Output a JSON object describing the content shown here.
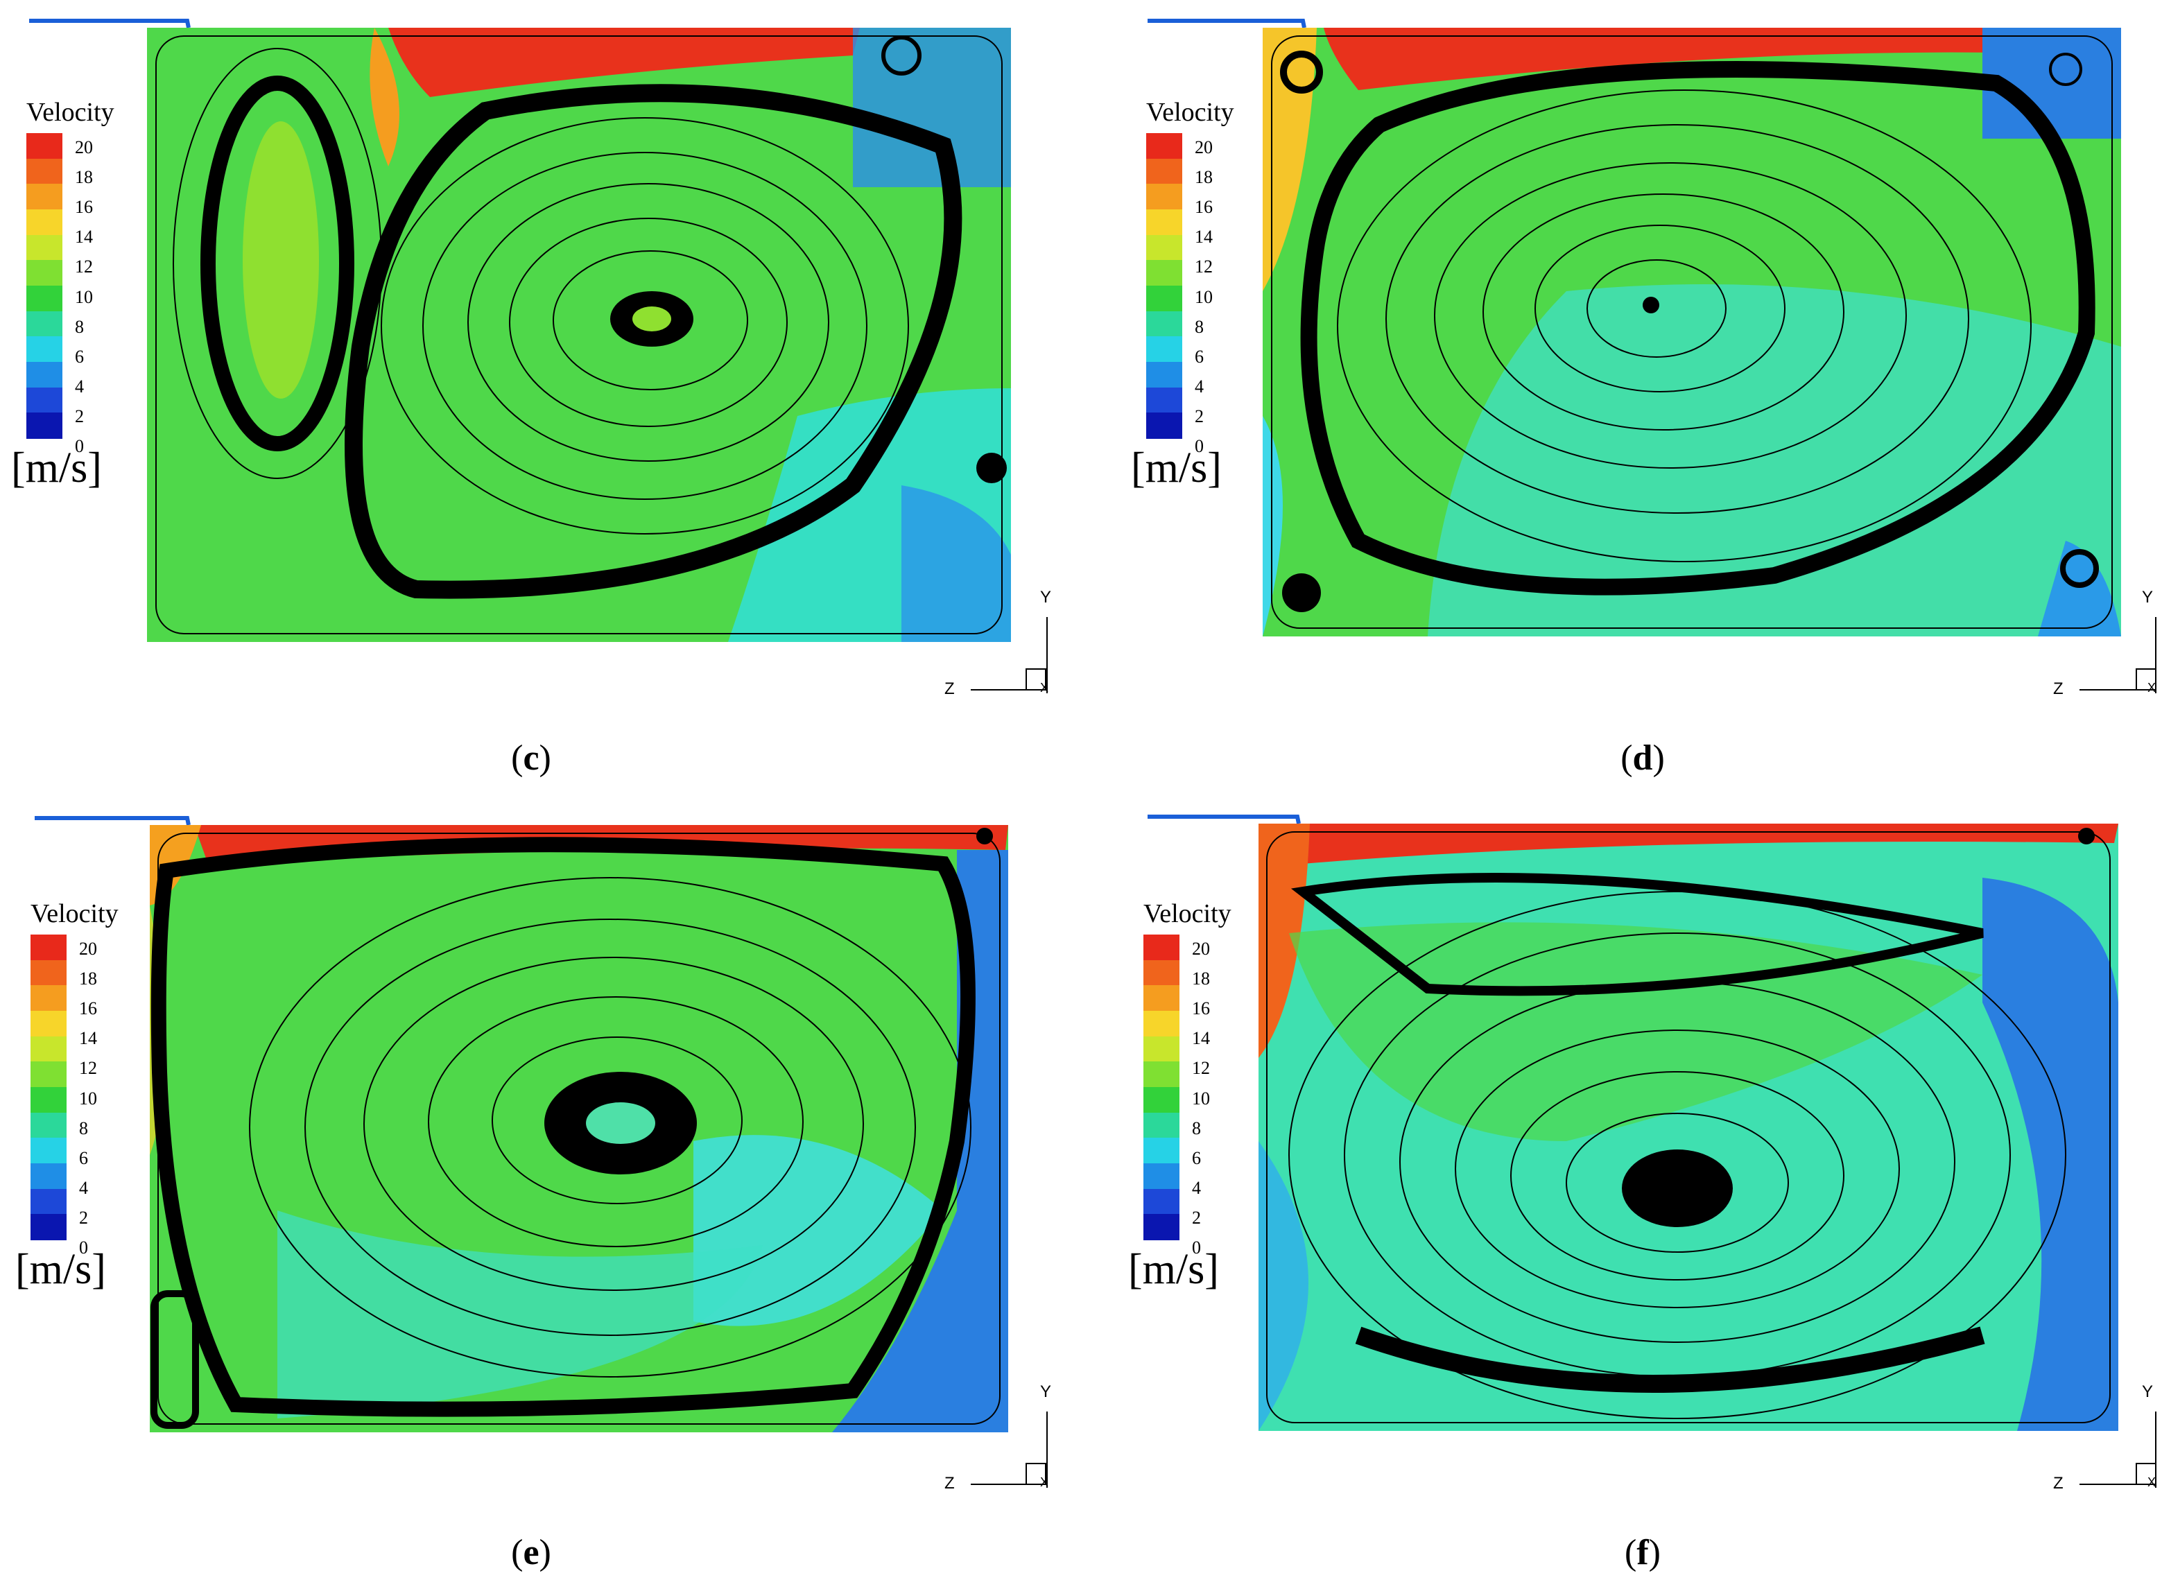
{
  "legend": {
    "title": "Velocity",
    "unit": "[m/s]",
    "ticks": [
      "20",
      "18",
      "16",
      "14",
      "12",
      "10",
      "8",
      "6",
      "4",
      "2",
      "0"
    ],
    "colors": [
      "#e8291b",
      "#f0641c",
      "#f59d1f",
      "#f7d52a",
      "#c8e62c",
      "#7fe032",
      "#32d23a",
      "#2bd89a",
      "#26d2e6",
      "#1f8ee6",
      "#1d48d8",
      "#0a16b0"
    ]
  },
  "axes": {
    "y": "Y",
    "z": "Z",
    "x": "X"
  },
  "panels": [
    {
      "caption": "c"
    },
    {
      "caption": "d"
    },
    {
      "caption": "e"
    },
    {
      "caption": "f"
    }
  ],
  "colors": {
    "field_green": "#4fd84a",
    "field_cyan": "#3fe0c8",
    "field_blue": "#2a7fe0",
    "hot": "#e83a1c"
  }
}
